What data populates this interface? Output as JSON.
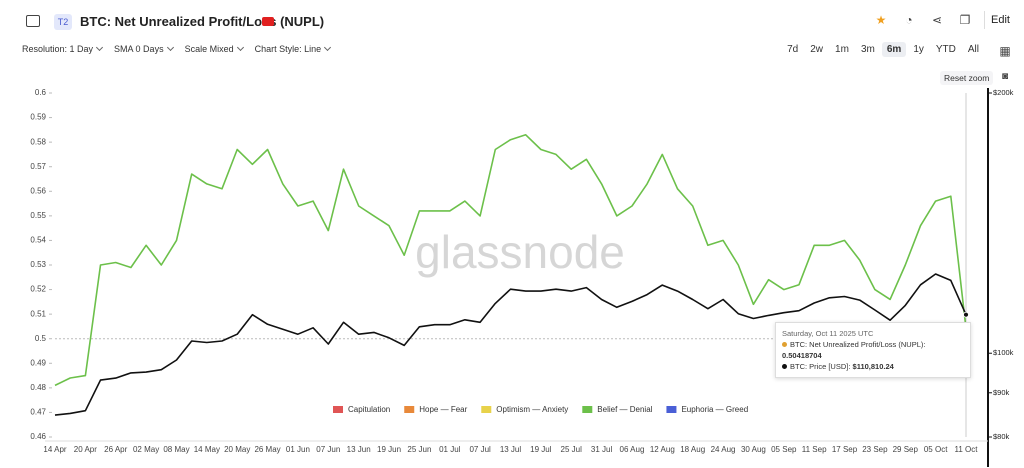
{
  "header": {
    "badge": "T2",
    "action": "Edit"
  },
  "toolbar": {
    "resolution": "Resolution: 1 Day",
    "sma": "SMA 0 Days",
    "scale": "Scale Mixed",
    "style": "Chart Style: Line"
  },
  "ranges": [
    "7d",
    "2w",
    "1m",
    "3m",
    "6m",
    "1y",
    "YTD",
    "All"
  ],
  "active_range": "6m",
  "reset_zoom": "Reset zoom",
  "watermark": "glassnode",
  "chart_data": {
    "type": "line",
    "title": "BTC: Net Unrealized Profit/Loss (NUPL)",
    "categories": [
      "14 Apr",
      null,
      "20 Apr",
      null,
      "26 Apr",
      null,
      "02 May",
      null,
      "08 May",
      null,
      "14 May",
      null,
      "20 May",
      null,
      "26 May",
      null,
      "01 Jun",
      null,
      "07 Jun",
      null,
      "13 Jun",
      null,
      "19 Jun",
      null,
      "25 Jun",
      null,
      "01 Jul",
      null,
      "07 Jul",
      null,
      "13 Jul",
      null,
      "19 Jul",
      null,
      "25 Jul",
      null,
      "31 Jul",
      null,
      "06 Aug",
      null,
      "12 Aug",
      null,
      "18 Aug",
      null,
      "24 Aug",
      null,
      "30 Aug",
      null,
      "05 Sep",
      null,
      "11 Sep",
      null,
      "17 Sep",
      null,
      "23 Sep",
      null,
      "29 Sep",
      null,
      "05 Oct",
      null,
      "11 Oct"
    ],
    "series": [
      {
        "color": "#6cc04a",
        "marker_color": "#e0a030",
        "values": [
          0.481,
          0.484,
          0.485,
          0.53,
          0.531,
          0.529,
          0.538,
          0.53,
          0.54,
          0.567,
          0.563,
          0.561,
          0.577,
          0.571,
          0.577,
          0.563,
          0.554,
          0.556,
          0.544,
          0.569,
          0.554,
          0.55,
          0.546,
          0.534,
          0.552,
          0.552,
          0.552,
          0.556,
          0.55,
          0.577,
          0.581,
          0.583,
          0.577,
          0.575,
          0.569,
          0.573,
          0.563,
          0.55,
          0.554,
          0.563,
          0.575,
          0.561,
          0.554,
          0.538,
          0.54,
          0.53,
          0.514,
          0.524,
          0.52,
          0.522,
          0.538,
          0.538,
          0.54,
          0.532,
          0.52,
          0.516,
          0.53,
          0.546,
          0.556,
          0.558,
          0.50418704
        ]
      },
      {
        "color": "#111111",
        "axis": "y2",
        "values": [
          84800,
          85200,
          85800,
          93100,
          93600,
          94900,
          95100,
          95700,
          98200,
          103300,
          102900,
          103300,
          105200,
          110800,
          108000,
          106600,
          105200,
          107000,
          102500,
          108600,
          105200,
          105700,
          104200,
          102100,
          107300,
          107900,
          107900,
          109300,
          108600,
          114200,
          118600,
          118000,
          118000,
          118600,
          118000,
          119100,
          115400,
          113000,
          114800,
          116900,
          119900,
          118000,
          115400,
          112600,
          115400,
          111100,
          109700,
          110600,
          111400,
          112000,
          114300,
          115900,
          116300,
          115200,
          112200,
          109200,
          113600,
          120000,
          123500,
          121400,
          110810.24
        ],
        "value_labels": [
          null,
          null,
          null,
          null,
          null,
          null,
          null,
          null,
          null,
          null,
          null,
          null,
          null,
          null,
          null,
          null,
          null,
          null,
          null,
          null,
          null,
          null,
          null,
          null,
          null,
          null,
          null,
          null,
          null,
          null,
          null,
          null,
          null,
          null,
          null,
          null,
          null,
          null,
          null,
          null,
          null,
          null,
          null,
          null,
          null,
          null,
          null,
          null,
          null,
          null,
          null,
          null,
          null,
          null,
          null,
          null,
          null,
          null,
          null,
          null,
          "$110,810.24"
        ]
      }
    ],
    "ylim": [
      0.46,
      0.6
    ],
    "yticks": [
      0.46,
      0.47,
      0.48,
      0.49,
      0.5,
      0.51,
      0.52,
      0.53,
      0.54,
      0.55,
      0.56,
      0.57,
      0.58,
      0.59,
      0.6
    ],
    "y2lim": [
      80000,
      200000
    ],
    "y2scale": "log",
    "y2ticks": [
      {
        "value": 80000,
        "label": "$80k"
      },
      {
        "value": 90000,
        "label": "$90k"
      },
      {
        "value": 100000,
        "label": "$100k"
      },
      {
        "value": 200000,
        "label": "$200k"
      }
    ],
    "reference_line": 0.5,
    "grid": false,
    "legend": [
      {
        "name": "Capitulation",
        "color": "#e05555"
      },
      {
        "name": "Hope — Fear",
        "color": "#e8893a"
      },
      {
        "name": "Optimism — Anxiety",
        "color": "#e8d24a"
      },
      {
        "name": "Belief — Denial",
        "color": "#6cc04a"
      },
      {
        "name": "Euphoria — Greed",
        "color": "#4a5fd6"
      }
    ],
    "tooltip": {
      "title": "Saturday, Oct 11 2025 UTC",
      "labels": [
        "BTC: Net Unrealized Profit/Loss (NUPL):",
        "BTC: Price [USD]:"
      ]
    }
  }
}
